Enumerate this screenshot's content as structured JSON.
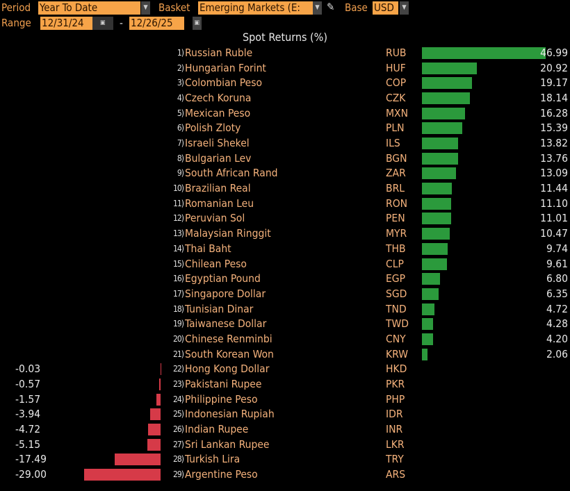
{
  "header": {
    "period_label": "Period",
    "period_value": "Year To Date",
    "basket_label": "Basket",
    "basket_value": "Emerging Markets (E:",
    "base_label": "Base",
    "base_value": "USD",
    "range_label": "Range",
    "range_start": "12/31/24",
    "range_sep": "-",
    "range_end": "12/26/25"
  },
  "colors": {
    "positive": "#2b9a3c",
    "negative": "#d63a48",
    "field": "#f7a448"
  },
  "chart_data": {
    "type": "bar",
    "orientation": "horizontal",
    "title": "Spot Returns (%)",
    "rows": [
      {
        "rank": "1)",
        "name": "Russian Ruble",
        "code": "RUB",
        "value": 46.99
      },
      {
        "rank": "2)",
        "name": "Hungarian Forint",
        "code": "HUF",
        "value": 20.92
      },
      {
        "rank": "3)",
        "name": "Colombian Peso",
        "code": "COP",
        "value": 19.17
      },
      {
        "rank": "4)",
        "name": "Czech Koruna",
        "code": "CZK",
        "value": 18.14
      },
      {
        "rank": "5)",
        "name": "Mexican Peso",
        "code": "MXN",
        "value": 16.28
      },
      {
        "rank": "6)",
        "name": "Polish Zloty",
        "code": "PLN",
        "value": 15.39
      },
      {
        "rank": "7)",
        "name": "Israeli Shekel",
        "code": "ILS",
        "value": 13.82
      },
      {
        "rank": "8)",
        "name": "Bulgarian Lev",
        "code": "BGN",
        "value": 13.76
      },
      {
        "rank": "9)",
        "name": "South African Rand",
        "code": "ZAR",
        "value": 13.09
      },
      {
        "rank": "10)",
        "name": "Brazilian Real",
        "code": "BRL",
        "value": 11.44
      },
      {
        "rank": "11)",
        "name": "Romanian Leu",
        "code": "RON",
        "value": 11.1
      },
      {
        "rank": "12)",
        "name": "Peruvian Sol",
        "code": "PEN",
        "value": 11.01
      },
      {
        "rank": "13)",
        "name": "Malaysian Ringgit",
        "code": "MYR",
        "value": 10.47
      },
      {
        "rank": "14)",
        "name": "Thai Baht",
        "code": "THB",
        "value": 9.74
      },
      {
        "rank": "15)",
        "name": "Chilean Peso",
        "code": "CLP",
        "value": 9.61
      },
      {
        "rank": "16)",
        "name": "Egyptian Pound",
        "code": "EGP",
        "value": 6.8
      },
      {
        "rank": "17)",
        "name": "Singapore Dollar",
        "code": "SGD",
        "value": 6.35
      },
      {
        "rank": "18)",
        "name": "Tunisian Dinar",
        "code": "TND",
        "value": 4.72
      },
      {
        "rank": "19)",
        "name": "Taiwanese Dollar",
        "code": "TWD",
        "value": 4.28
      },
      {
        "rank": "20)",
        "name": "Chinese Renminbi",
        "code": "CNY",
        "value": 4.2
      },
      {
        "rank": "21)",
        "name": "South Korean Won",
        "code": "KRW",
        "value": 2.06
      },
      {
        "rank": "22)",
        "name": "Hong Kong Dollar",
        "code": "HKD",
        "value": -0.03
      },
      {
        "rank": "23)",
        "name": "Pakistani Rupee",
        "code": "PKR",
        "value": -0.57
      },
      {
        "rank": "24)",
        "name": "Philippine Peso",
        "code": "PHP",
        "value": -1.57
      },
      {
        "rank": "25)",
        "name": "Indonesian Rupiah",
        "code": "IDR",
        "value": -3.94
      },
      {
        "rank": "26)",
        "name": "Indian Rupee",
        "code": "INR",
        "value": -4.72
      },
      {
        "rank": "27)",
        "name": "Sri Lankan Rupee",
        "code": "LKR",
        "value": -5.15
      },
      {
        "rank": "28)",
        "name": "Turkish Lira",
        "code": "TRY",
        "value": -17.49
      },
      {
        "rank": "29)",
        "name": "Argentine Peso",
        "code": "ARS",
        "value": -29.0
      }
    ]
  }
}
